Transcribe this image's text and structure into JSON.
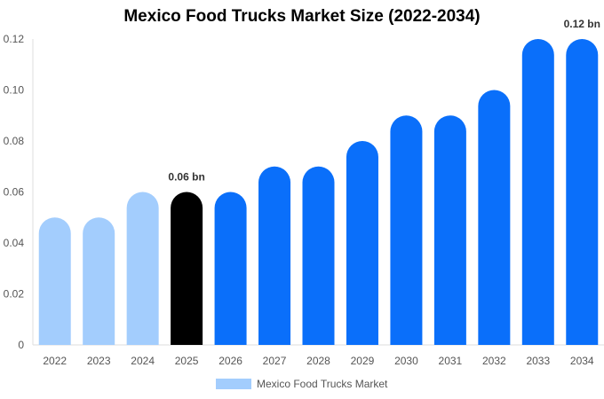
{
  "chart_data": {
    "type": "bar",
    "title": "Mexico Food Trucks Market Size (2022-2034)",
    "xlabel": "",
    "ylabel": "",
    "categories": [
      "2022",
      "2023",
      "2024",
      "2025",
      "2026",
      "2027",
      "2028",
      "2029",
      "2030",
      "2031",
      "2032",
      "2033",
      "2034"
    ],
    "series": [
      {
        "name": "Mexico Food Trucks Market",
        "values": [
          0.05,
          0.05,
          0.06,
          0.06,
          0.06,
          0.07,
          0.07,
          0.08,
          0.09,
          0.09,
          0.1,
          0.12,
          0.12
        ],
        "bar_colors": [
          "#a3cdfd",
          "#a3cdfd",
          "#a3cdfd",
          "#000000",
          "#0a6ffa",
          "#0a6ffa",
          "#0a6ffa",
          "#0a6ffa",
          "#0a6ffa",
          "#0a6ffa",
          "#0a6ffa",
          "#0a6ffa",
          "#0a6ffa"
        ]
      }
    ],
    "ylim": [
      0,
      0.12
    ],
    "yticks": [
      0,
      0.02,
      0.04,
      0.06,
      0.08,
      0.1,
      0.12
    ],
    "ytick_labels": [
      "0",
      "0.02",
      "0.04",
      "0.06",
      "0.08",
      "0.10",
      "0.12"
    ],
    "data_labels": [
      {
        "category": "2025",
        "text": "0.06 bn"
      },
      {
        "category": "2034",
        "text": "0.12 bn"
      }
    ],
    "grid": false,
    "legend_position": "bottom-center",
    "legend_color": "#a3cdfd"
  }
}
